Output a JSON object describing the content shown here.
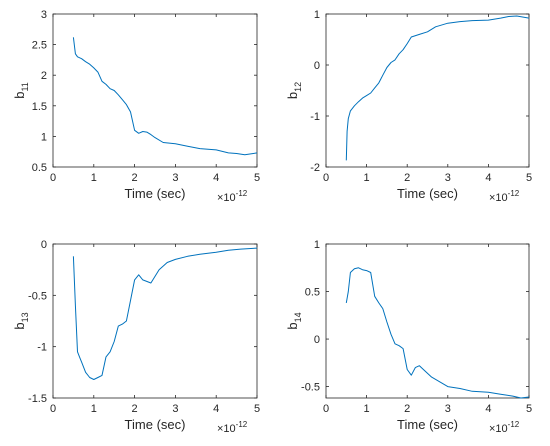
{
  "colors": {
    "series": "#0072BD",
    "axis": "#262626"
  },
  "chart_data": [
    {
      "type": "line",
      "ylabel_main": "b",
      "ylabel_sub": "11",
      "xlabel": "Time (sec)",
      "x_exponent_base": "×10",
      "x_exponent_power": "-12",
      "xlim": [
        0,
        5
      ],
      "ylim": [
        0.5,
        3
      ],
      "xticks": [
        0,
        1,
        2,
        3,
        4,
        5
      ],
      "yticks": [
        0.5,
        1,
        1.5,
        2,
        2.5,
        3
      ],
      "ytick_labels": [
        "0.5",
        "1",
        "1.5",
        "2",
        "2.5",
        "3"
      ],
      "x": [
        0.5,
        0.55,
        0.6,
        0.7,
        0.8,
        0.9,
        1.0,
        1.1,
        1.2,
        1.3,
        1.4,
        1.5,
        1.6,
        1.7,
        1.8,
        1.9,
        2.0,
        2.1,
        2.2,
        2.3,
        2.4,
        2.5,
        2.7,
        3.0,
        3.3,
        3.6,
        4.0,
        4.3,
        4.5,
        4.7,
        5.0
      ],
      "y": [
        2.62,
        2.35,
        2.3,
        2.27,
        2.22,
        2.18,
        2.12,
        2.05,
        1.9,
        1.85,
        1.78,
        1.75,
        1.68,
        1.6,
        1.52,
        1.4,
        1.1,
        1.05,
        1.08,
        1.07,
        1.03,
        0.98,
        0.9,
        0.88,
        0.84,
        0.8,
        0.78,
        0.73,
        0.72,
        0.7,
        0.73
      ]
    },
    {
      "type": "line",
      "ylabel_main": "b",
      "ylabel_sub": "12",
      "xlabel": "Time (sec)",
      "x_exponent_base": "×10",
      "x_exponent_power": "-12",
      "xlim": [
        0,
        5
      ],
      "ylim": [
        -2,
        1
      ],
      "xticks": [
        0,
        1,
        2,
        3,
        4,
        5
      ],
      "yticks": [
        -2,
        -1,
        0,
        1
      ],
      "ytick_labels": [
        "-2",
        "-1",
        "0",
        "1"
      ],
      "x": [
        0.5,
        0.52,
        0.55,
        0.6,
        0.7,
        0.8,
        0.9,
        1.0,
        1.1,
        1.2,
        1.3,
        1.4,
        1.5,
        1.6,
        1.7,
        1.8,
        1.9,
        2.0,
        2.1,
        2.3,
        2.5,
        2.7,
        3.0,
        3.3,
        3.6,
        4.0,
        4.3,
        4.5,
        4.7,
        5.0
      ],
      "y": [
        -1.87,
        -1.3,
        -1.05,
        -0.9,
        -0.8,
        -0.72,
        -0.65,
        -0.6,
        -0.55,
        -0.45,
        -0.35,
        -0.2,
        -0.05,
        0.05,
        0.1,
        0.22,
        0.3,
        0.42,
        0.55,
        0.6,
        0.65,
        0.75,
        0.82,
        0.85,
        0.87,
        0.88,
        0.92,
        0.95,
        0.96,
        0.92
      ]
    },
    {
      "type": "line",
      "ylabel_main": "b",
      "ylabel_sub": "13",
      "xlabel": "Time (sec)",
      "x_exponent_base": "×10",
      "x_exponent_power": "-12",
      "xlim": [
        0,
        5
      ],
      "ylim": [
        -1.5,
        0
      ],
      "xticks": [
        0,
        1,
        2,
        3,
        4,
        5
      ],
      "yticks": [
        -1.5,
        -1,
        -0.5,
        0
      ],
      "ytick_labels": [
        "-1.5",
        "-1",
        "-0.5",
        "0"
      ],
      "x": [
        0.5,
        0.55,
        0.6,
        0.65,
        0.7,
        0.8,
        0.9,
        1.0,
        1.1,
        1.2,
        1.3,
        1.4,
        1.5,
        1.6,
        1.7,
        1.8,
        1.9,
        2.0,
        2.1,
        2.2,
        2.4,
        2.6,
        2.8,
        3.0,
        3.3,
        3.6,
        4.0,
        4.3,
        4.6,
        5.0
      ],
      "y": [
        -0.12,
        -0.6,
        -1.05,
        -1.1,
        -1.15,
        -1.25,
        -1.3,
        -1.32,
        -1.3,
        -1.28,
        -1.1,
        -1.05,
        -0.95,
        -0.8,
        -0.78,
        -0.75,
        -0.55,
        -0.35,
        -0.3,
        -0.35,
        -0.38,
        -0.25,
        -0.18,
        -0.15,
        -0.12,
        -0.1,
        -0.08,
        -0.06,
        -0.05,
        -0.04
      ]
    },
    {
      "type": "line",
      "ylabel_main": "b",
      "ylabel_sub": "14",
      "xlabel": "Time (sec)",
      "x_exponent_base": "×10",
      "x_exponent_power": "-12",
      "xlim": [
        0,
        5
      ],
      "ylim": [
        -0.62,
        1
      ],
      "xticks": [
        0,
        1,
        2,
        3,
        4,
        5
      ],
      "yticks": [
        -0.5,
        0,
        0.5,
        1
      ],
      "ytick_labels": [
        "-0.5",
        "0",
        "0.5",
        "1"
      ],
      "x": [
        0.5,
        0.55,
        0.6,
        0.7,
        0.8,
        0.9,
        1.0,
        1.1,
        1.2,
        1.3,
        1.4,
        1.5,
        1.6,
        1.7,
        1.8,
        1.9,
        2.0,
        2.1,
        2.2,
        2.3,
        2.4,
        2.6,
        2.8,
        3.0,
        3.3,
        3.6,
        4.0,
        4.3,
        4.6,
        4.8,
        5.0
      ],
      "y": [
        0.38,
        0.5,
        0.7,
        0.74,
        0.75,
        0.73,
        0.72,
        0.7,
        0.45,
        0.38,
        0.32,
        0.18,
        0.05,
        -0.05,
        -0.07,
        -0.1,
        -0.32,
        -0.38,
        -0.3,
        -0.28,
        -0.32,
        -0.4,
        -0.45,
        -0.5,
        -0.52,
        -0.55,
        -0.56,
        -0.58,
        -0.6,
        -0.62,
        -0.61
      ]
    }
  ]
}
